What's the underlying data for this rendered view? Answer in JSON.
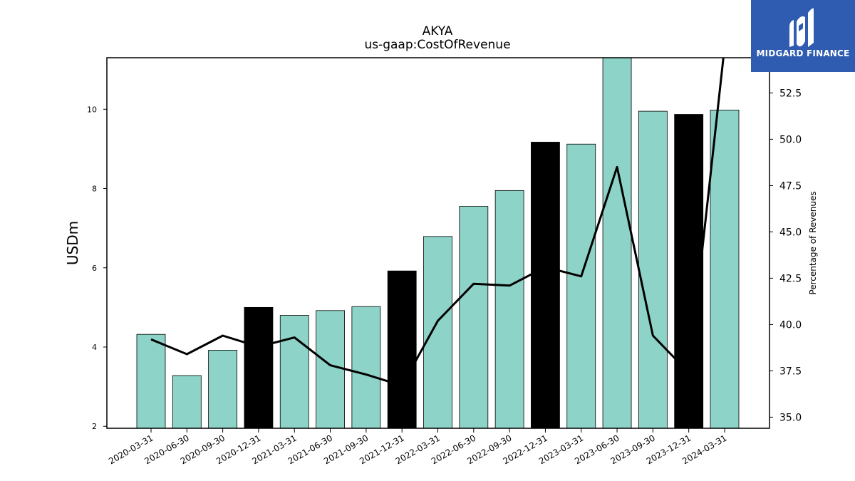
{
  "brand": {
    "name": "MIDGARD FINANCE",
    "bg_color": "#2f5bb1"
  },
  "chart_data": {
    "type": "bar",
    "title": "AKYA",
    "subtitle": "us-gaap:CostOfRevenue",
    "ylabel": "USDm",
    "y2label": "Percentage of Revenues",
    "ylim": [
      1.95,
      11.3
    ],
    "y2lim": [
      34.4,
      54.4
    ],
    "yticks": [
      2,
      4,
      6,
      8,
      10
    ],
    "y2ticks": [
      "35.0",
      "37.5",
      "40.0",
      "42.5",
      "45.0",
      "47.5",
      "50.0",
      "52.5"
    ],
    "categories": [
      "2020-03-31",
      "2020-06-30",
      "2020-09-30",
      "2020-12-31",
      "2021-03-31",
      "2021-06-30",
      "2021-09-30",
      "2021-12-31",
      "2022-03-31",
      "2022-06-30",
      "2022-09-30",
      "2022-12-31",
      "2023-03-31",
      "2023-06-30",
      "2023-09-30",
      "2023-12-31",
      "2024-03-31"
    ],
    "series": [
      {
        "kind": "bar",
        "values": [
          4.32,
          3.28,
          3.92,
          5.0,
          4.8,
          4.92,
          5.02,
          5.92,
          6.79,
          7.55,
          7.95,
          9.17,
          9.12,
          11.3,
          9.95,
          9.87,
          9.98
        ],
        "colors": [
          "#8dd3c7",
          "#8dd3c7",
          "#8dd3c7",
          "#000000",
          "#8dd3c7",
          "#8dd3c7",
          "#8dd3c7",
          "#000000",
          "#8dd3c7",
          "#8dd3c7",
          "#8dd3c7",
          "#000000",
          "#8dd3c7",
          "#8dd3c7",
          "#8dd3c7",
          "#000000",
          "#8dd3c7"
        ]
      },
      {
        "kind": "line",
        "axis": "right",
        "color": "#000000",
        "values": [
          39.2,
          38.4,
          39.4,
          38.8,
          39.3,
          37.8,
          37.3,
          36.7,
          40.2,
          42.2,
          42.1,
          43.1,
          42.6,
          48.5,
          39.4,
          37.4,
          55.0
        ]
      }
    ],
    "grid": false,
    "legend": "none"
  }
}
